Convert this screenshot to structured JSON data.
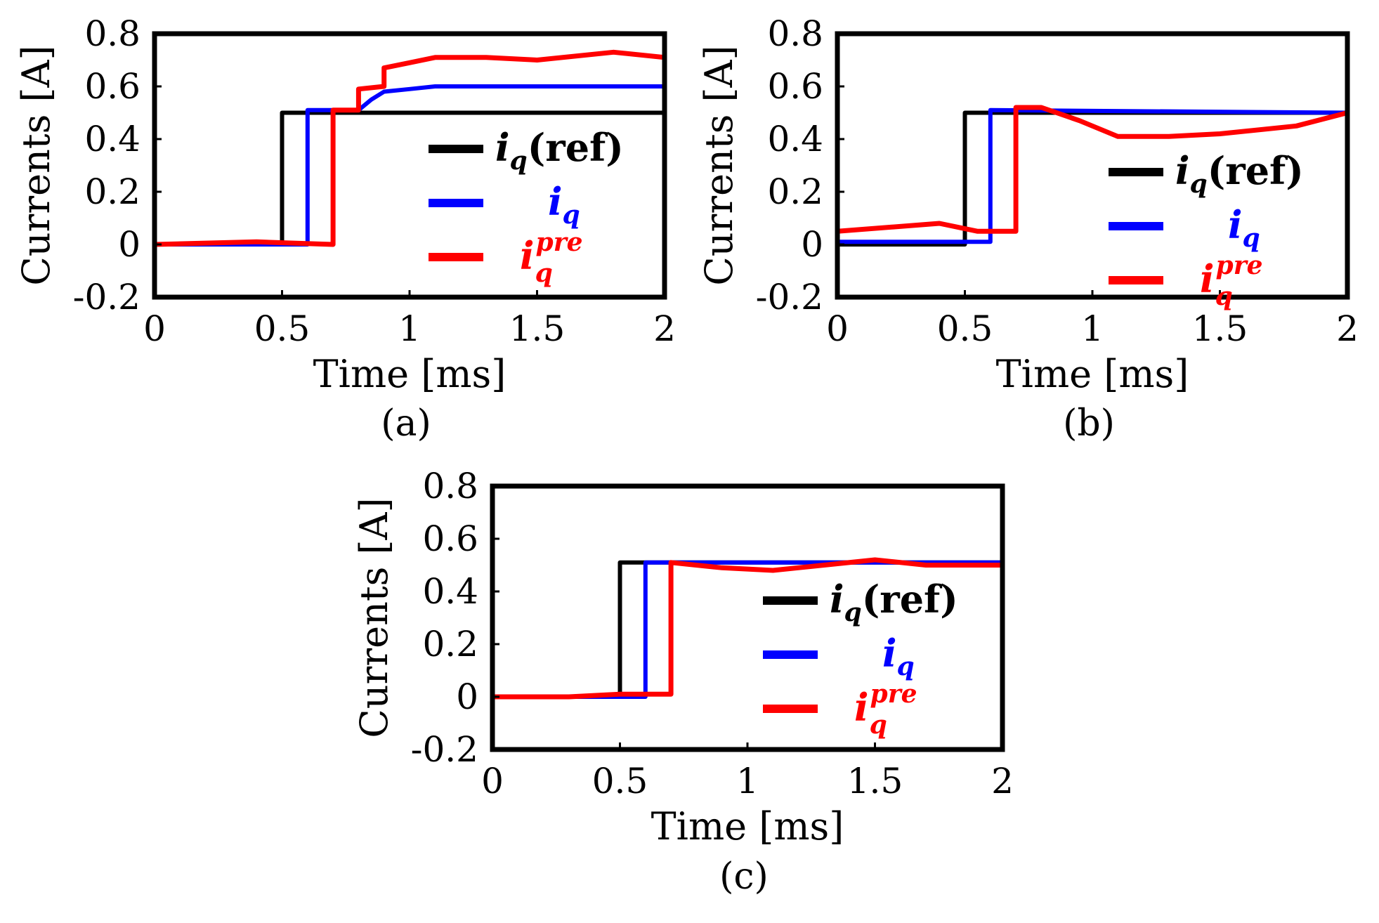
{
  "chart_data": [
    {
      "id": "a",
      "type": "line",
      "caption": "(a)",
      "xlabel": "Time [ms]",
      "ylabel": "Currents [A]",
      "xlim": [
        0,
        2
      ],
      "ylim": [
        -0.2,
        0.8
      ],
      "xticks": [
        "0",
        "0.5",
        "1",
        "1.5",
        "2"
      ],
      "yticks": [
        "-0.2",
        "0",
        "0.2",
        "0.4",
        "0.6",
        "0.8"
      ],
      "legend_position": "center-right",
      "series": [
        {
          "name": "i_q(ref)",
          "label_main": "i",
          "label_sub": "q",
          "label_suffix": "(ref)",
          "label_sup": "",
          "color": "#000000",
          "x": [
            0,
            0.49,
            0.5,
            0.5,
            2
          ],
          "y": [
            0,
            0,
            0,
            0.5,
            0.5
          ]
        },
        {
          "name": "i_q",
          "label_main": "i",
          "label_sub": "q",
          "label_suffix": "",
          "label_sup": "",
          "color": "#0000ff",
          "x": [
            0,
            0.6,
            0.6,
            0.8,
            0.85,
            0.9,
            1.0,
            1.1,
            1.5,
            2.0
          ],
          "y": [
            0,
            0,
            0.51,
            0.51,
            0.55,
            0.58,
            0.59,
            0.6,
            0.6,
            0.6
          ]
        },
        {
          "name": "i_q^pre",
          "label_main": "i",
          "label_sub": "q",
          "label_suffix": "",
          "label_sup": "pre",
          "color": "#ff0000",
          "x": [
            0,
            0.4,
            0.7,
            0.7,
            0.8,
            0.8,
            0.9,
            0.9,
            1.0,
            1.1,
            1.3,
            1.5,
            1.8,
            2.0
          ],
          "y": [
            0,
            0.01,
            0,
            0.51,
            0.51,
            0.59,
            0.6,
            0.67,
            0.69,
            0.71,
            0.71,
            0.7,
            0.73,
            0.71
          ]
        }
      ]
    },
    {
      "id": "b",
      "type": "line",
      "caption": "(b)",
      "xlabel": "Time [ms]",
      "ylabel": "Currents [A]",
      "xlim": [
        0,
        2
      ],
      "ylim": [
        -0.2,
        0.8
      ],
      "xticks": [
        "0",
        "0.5",
        "1",
        "1.5",
        "2"
      ],
      "yticks": [
        "-0.2",
        "0",
        "0.2",
        "0.4",
        "0.6",
        "0.8"
      ],
      "legend_position": "center-right",
      "series": [
        {
          "name": "i_q(ref)",
          "label_main": "i",
          "label_sub": "q",
          "label_suffix": "(ref)",
          "label_sup": "",
          "color": "#000000",
          "x": [
            0,
            0.5,
            0.5,
            2
          ],
          "y": [
            0,
            0,
            0.5,
            0.5
          ]
        },
        {
          "name": "i_q",
          "label_main": "i",
          "label_sub": "q",
          "label_suffix": "",
          "label_sup": "",
          "color": "#0000ff",
          "x": [
            0,
            0.6,
            0.6,
            2
          ],
          "y": [
            0.01,
            0.01,
            0.51,
            0.5
          ]
        },
        {
          "name": "i_q^pre",
          "label_main": "i",
          "label_sub": "q",
          "label_suffix": "",
          "label_sup": "pre",
          "color": "#ff0000",
          "x": [
            0,
            0.4,
            0.55,
            0.7,
            0.7,
            0.8,
            0.95,
            1.1,
            1.3,
            1.5,
            1.8,
            2.0
          ],
          "y": [
            0.05,
            0.08,
            0.05,
            0.05,
            0.52,
            0.52,
            0.47,
            0.41,
            0.41,
            0.42,
            0.45,
            0.5
          ]
        }
      ]
    },
    {
      "id": "c",
      "type": "line",
      "caption": "(c)",
      "xlabel": "Time [ms]",
      "ylabel": "Currents [A]",
      "xlim": [
        0,
        2
      ],
      "ylim": [
        -0.2,
        0.8
      ],
      "xticks": [
        "0",
        "0.5",
        "1",
        "1.5",
        "2"
      ],
      "yticks": [
        "-0.2",
        "0",
        "0.2",
        "0.4",
        "0.6",
        "0.8"
      ],
      "legend_position": "center-right",
      "series": [
        {
          "name": "i_q(ref)",
          "label_main": "i",
          "label_sub": "q",
          "label_suffix": "(ref)",
          "label_sup": "",
          "color": "#000000",
          "x": [
            0,
            0.5,
            0.5,
            2
          ],
          "y": [
            0,
            0,
            0.51,
            0.51
          ]
        },
        {
          "name": "i_q",
          "label_main": "i",
          "label_sub": "q",
          "label_suffix": "",
          "label_sup": "",
          "color": "#0000ff",
          "x": [
            0,
            0.6,
            0.6,
            2
          ],
          "y": [
            0,
            0,
            0.51,
            0.51
          ]
        },
        {
          "name": "i_q^pre",
          "label_main": "i",
          "label_sub": "q",
          "label_suffix": "",
          "label_sup": "pre",
          "color": "#ff0000",
          "x": [
            0,
            0.3,
            0.5,
            0.7,
            0.7,
            0.9,
            1.1,
            1.3,
            1.5,
            1.7,
            2.0
          ],
          "y": [
            0,
            0,
            0.01,
            0.01,
            0.51,
            0.49,
            0.48,
            0.5,
            0.52,
            0.5,
            0.5
          ]
        }
      ]
    }
  ]
}
